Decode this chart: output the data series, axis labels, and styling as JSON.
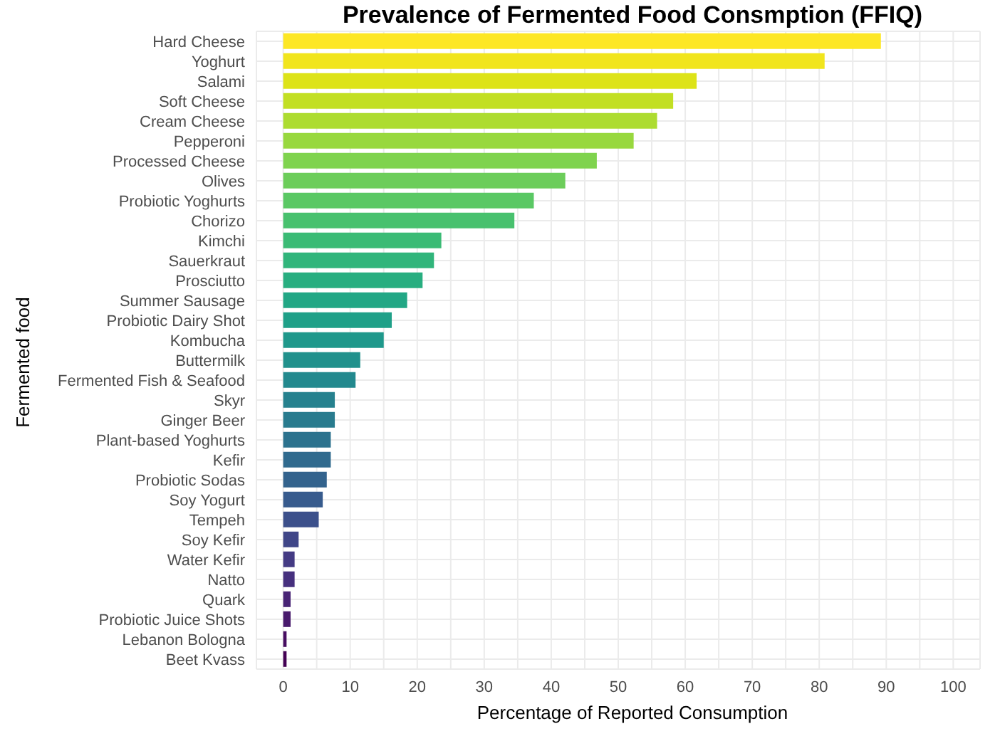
{
  "chart_data": {
    "type": "bar",
    "orientation": "horizontal",
    "title": "Prevalence of Fermented Food Consmption (FFIQ)",
    "xlabel": "Percentage of Reported Consumption",
    "ylabel": "Fermented food",
    "categories": [
      "Hard Cheese",
      "Yoghurt",
      "Salami",
      "Soft Cheese",
      "Cream Cheese",
      "Pepperoni",
      "Processed Cheese",
      "Olives",
      "Probiotic Yoghurts",
      "Chorizo",
      "Kimchi",
      "Sauerkraut",
      "Prosciutto",
      "Summer Sausage",
      "Probiotic Dairy Shot",
      "Kombucha",
      "Buttermilk",
      "Fermented Fish & Seafood",
      "Skyr",
      "Ginger Beer",
      "Plant-based Yoghurts",
      "Kefir",
      "Probiotic Sodas",
      "Soy Yogurt",
      "Tempeh",
      "Soy Kefir",
      "Water Kefir",
      "Natto",
      "Quark",
      "Probiotic Juice Shots",
      "Lebanon Bologna",
      "Beet Kvass"
    ],
    "values": [
      89.2,
      80.8,
      61.7,
      58.2,
      55.8,
      52.3,
      46.8,
      42.1,
      37.4,
      34.5,
      23.6,
      22.5,
      20.8,
      18.5,
      16.2,
      15.0,
      11.5,
      10.8,
      7.7,
      7.7,
      7.1,
      7.1,
      6.5,
      5.9,
      5.3,
      2.3,
      1.7,
      1.7,
      1.1,
      1.1,
      0.5,
      0.5
    ],
    "colors": [
      "#fde725",
      "#f1e51d",
      "#dde318",
      "#c2df23",
      "#addc30",
      "#98d83e",
      "#7fd34e",
      "#6ccd5a",
      "#5ac864",
      "#48c16e",
      "#3bbb75",
      "#31b57b",
      "#28ae80",
      "#22a785",
      "#1fa088",
      "#1f988b",
      "#21918c",
      "#23898e",
      "#26818e",
      "#297b8e",
      "#2c728e",
      "#306a8e",
      "#33638d",
      "#375b8d",
      "#3c508b",
      "#404688",
      "#443b84",
      "#46307e",
      "#482475",
      "#481a6c",
      "#470e61",
      "#440154"
    ],
    "xlim": [
      -4,
      104
    ],
    "xticks": [
      0,
      {
        "value": 5,
        "label": null
      },
      10,
      {
        "value": 15,
        "label": null
      },
      20,
      {
        "value": 25,
        "label": null
      },
      30,
      {
        "value": 35,
        "label": null
      },
      40,
      {
        "value": 45,
        "label": null
      },
      50,
      {
        "value": 55,
        "label": null
      },
      60,
      {
        "value": 65,
        "label": null
      },
      70,
      {
        "value": 75,
        "label": null
      },
      80,
      {
        "value": 85,
        "label": null
      },
      90,
      {
        "value": 95,
        "label": null
      },
      100
    ],
    "grid": true
  }
}
